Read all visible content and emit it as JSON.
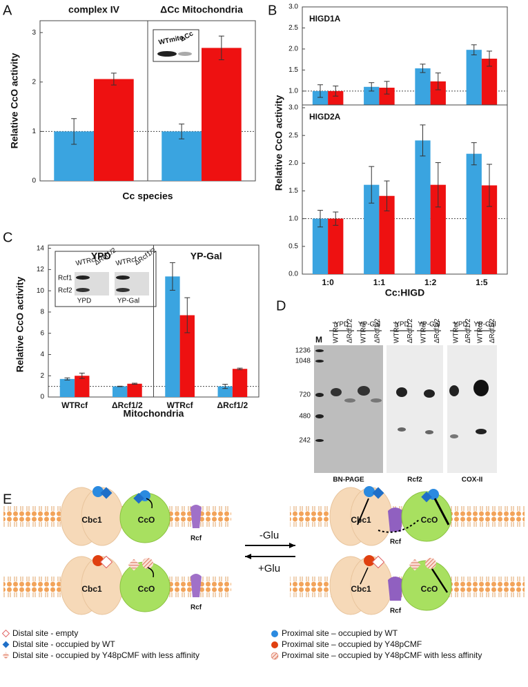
{
  "panel_labels": [
    "A",
    "B",
    "C",
    "D",
    "E"
  ],
  "chart_data": [
    {
      "type": "bar",
      "group_labels": [
        "complex IV",
        "ΔCc Mitochondria"
      ],
      "categories": [
        null,
        null
      ],
      "series": [
        {
          "color": "#3aa4e0",
          "values": [
            1,
            1
          ],
          "errors": [
            0.26,
            0.15
          ]
        },
        {
          "color": "#ee1111",
          "values": [
            2.06,
            2.69
          ],
          "errors": [
            0.12,
            0.24
          ]
        }
      ],
      "ylim": [
        0,
        3.24
      ],
      "yticks": [
        0,
        1,
        2,
        3
      ],
      "reference_line": 1,
      "ylabel": "Relative CcO activity",
      "xlabel": "Cc species",
      "inset_labels": [
        "WTmito",
        "ΔCc"
      ]
    },
    {
      "type": "bar",
      "title": "HIGD1A",
      "categories": [
        null,
        null,
        null,
        null
      ],
      "series": [
        {
          "color": "#3aa4e0",
          "values": [
            1.0,
            1.1,
            1.54,
            1.98
          ],
          "errors": [
            0.15,
            0.1,
            0.1,
            0.12
          ]
        },
        {
          "color": "#ee1111",
          "values": [
            1.0,
            1.08,
            1.23,
            1.77
          ],
          "errors": [
            0.12,
            0.15,
            0.2,
            0.18
          ]
        }
      ],
      "ylim": [
        0.67,
        3.0
      ],
      "yticks": [
        {
          "value": 1,
          "label": "1.0"
        },
        1.5,
        {
          "value": 2,
          "label": "2.0"
        },
        2.5,
        {
          "value": 3,
          "label": "3.0"
        }
      ],
      "reference_line": 1
    },
    {
      "type": "bar",
      "title": "HIGD2A",
      "categories": [
        "1:0",
        "1:1",
        "1:2",
        "1:5"
      ],
      "series": [
        {
          "color": "#3aa4e0",
          "values": [
            1.0,
            1.61,
            2.41,
            2.17
          ],
          "errors": [
            0.15,
            0.33,
            0.28,
            0.2
          ]
        },
        {
          "color": "#ee1111",
          "values": [
            1.0,
            1.41,
            1.61,
            1.6
          ],
          "errors": [
            0.12,
            0.27,
            0.4,
            0.38
          ]
        }
      ],
      "ylim": [
        0,
        3.05
      ],
      "yticks": [
        {
          "value": 0,
          "label": "0.0"
        },
        0.5,
        {
          "value": 1,
          "label": "1.0"
        },
        1.5,
        {
          "value": 2,
          "label": "2.0"
        },
        2.5,
        {
          "value": 3,
          "label": "3.0"
        }
      ],
      "reference_line": 1,
      "ylabel": "Relative CcO activity",
      "xlabel": "Cc:HIGD"
    },
    {
      "type": "bar",
      "group_labels": [
        "YPD",
        "YP-Gal"
      ],
      "categories": [
        "WTRcf",
        "ΔRcf1/2",
        "WTRcf",
        "ΔRcf1/2"
      ],
      "series": [
        {
          "color": "#3aa4e0",
          "values": [
            1.7,
            1.0,
            11.35,
            1.0
          ],
          "errors": [
            0.1,
            0.02,
            1.3,
            0.2
          ]
        },
        {
          "color": "#ee1111",
          "values": [
            2.0,
            1.25,
            7.7,
            2.65
          ],
          "errors": [
            0.25,
            0.05,
            1.65,
            0.07
          ]
        }
      ],
      "ylim": [
        0,
        14.3
      ],
      "yticks": [
        0,
        2,
        4,
        6,
        8,
        10,
        12,
        14
      ],
      "reference_line": 1,
      "ylabel": "Relative CcO activity",
      "xlabel": "Mitochondria",
      "inset_labels": [
        "WTRcf",
        "ΔRcf1/2",
        "Rcf1",
        "Rcf2",
        "YPD",
        "YP-Gal"
      ]
    }
  ],
  "gel": {
    "marker_label": "M",
    "markers": [
      "1236",
      "1048",
      "720",
      "480",
      "242"
    ],
    "conditions": [
      "YPD",
      "YP-Gal"
    ],
    "lanes": [
      "WTRcf",
      "ΔRcf1/2"
    ],
    "panels": [
      "BN-PAGE",
      "Rcf2",
      "COX-II"
    ]
  },
  "diagram": {
    "complexes": [
      "Cbc1",
      "CcO"
    ],
    "rcf": "Rcf",
    "arrows": [
      "-Glu",
      "+Glu"
    ]
  },
  "legend": [
    "Distal site - empty",
    "Distal site - occupied by WT",
    "Distal site - occupied by Y48pCMF with less affinity",
    "Proximal site – occupied by WT",
    "Proximal site – occupied by Y48pCMF",
    "Proximal site – occupied by Y48pCMF with less affinity"
  ]
}
